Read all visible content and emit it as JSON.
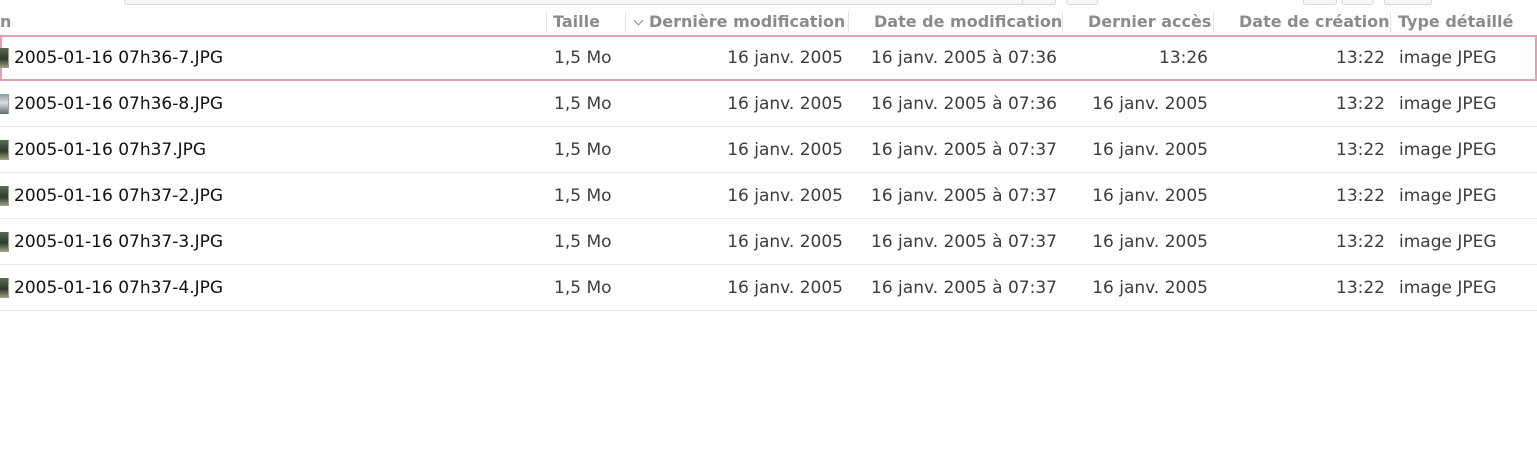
{
  "columns": {
    "name": "n",
    "size": "Taille",
    "last_modified": "Dernière modification",
    "date_modified": "Date de modification",
    "last_access": "Dernier accès",
    "date_created": "Date de création",
    "detailed_type": "Type détaillé"
  },
  "sort": {
    "column": "last_modified",
    "icon": "chevron-down-icon"
  },
  "files": [
    {
      "name": "2005-01-16 07h36-7.JPG",
      "size": "1,5 Mo",
      "last_modified": "16 janv. 2005",
      "date_modified": "16 janv. 2005 à 07:36",
      "last_access": "13:26",
      "date_created": "13:22",
      "type": "image JPEG",
      "selected": true
    },
    {
      "name": "2005-01-16 07h36-8.JPG",
      "size": "1,5 Mo",
      "last_modified": "16 janv. 2005",
      "date_modified": "16 janv. 2005 à 07:36",
      "last_access": "16 janv. 2005",
      "date_created": "13:22",
      "type": "image JPEG",
      "selected": false
    },
    {
      "name": "2005-01-16 07h37.JPG",
      "size": "1,5 Mo",
      "last_modified": "16 janv. 2005",
      "date_modified": "16 janv. 2005 à 07:37",
      "last_access": "16 janv. 2005",
      "date_created": "13:22",
      "type": "image JPEG",
      "selected": false
    },
    {
      "name": "2005-01-16 07h37-2.JPG",
      "size": "1,5 Mo",
      "last_modified": "16 janv. 2005",
      "date_modified": "16 janv. 2005 à 07:37",
      "last_access": "16 janv. 2005",
      "date_created": "13:22",
      "type": "image JPEG",
      "selected": false
    },
    {
      "name": "2005-01-16 07h37-3.JPG",
      "size": "1,5 Mo",
      "last_modified": "16 janv. 2005",
      "date_modified": "16 janv. 2005 à 07:37",
      "last_access": "16 janv. 2005",
      "date_created": "13:22",
      "type": "image JPEG",
      "selected": false
    },
    {
      "name": "2005-01-16 07h37-4.JPG",
      "size": "1,5 Mo",
      "last_modified": "16 janv. 2005",
      "date_modified": "16 janv. 2005 à 07:37",
      "last_access": "16 janv. 2005",
      "date_created": "13:22",
      "type": "image JPEG",
      "selected": false
    }
  ],
  "colors": {
    "selection_outline": "#e2a3b0",
    "header_text": "#8b8b8b",
    "cell_text": "#3c3c3c"
  }
}
